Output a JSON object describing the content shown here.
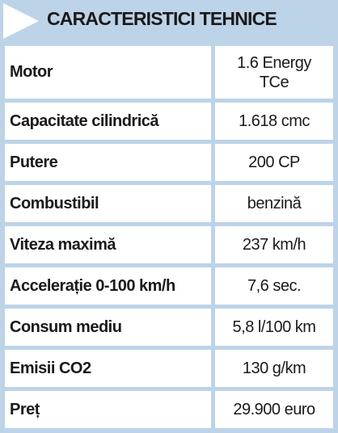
{
  "header": {
    "title": "CARACTERISTICI TEHNICE"
  },
  "table": {
    "rows": [
      [
        "Motor",
        "1.6 Energy TCe"
      ],
      [
        "Capacitate cilindrică",
        "1.618 cmc"
      ],
      [
        "Putere",
        "200 CP"
      ],
      [
        "Combustibil",
        "benzină"
      ],
      [
        "Viteza maximă",
        "237 km/h"
      ],
      [
        "Accelerație 0-100 km/h",
        "7,6 sec."
      ],
      [
        "Consum mediu",
        "5,8 l/100 km"
      ],
      [
        "Emisii CO2",
        "130 g/km"
      ],
      [
        "Preț",
        "29.900 euro"
      ]
    ]
  }
}
